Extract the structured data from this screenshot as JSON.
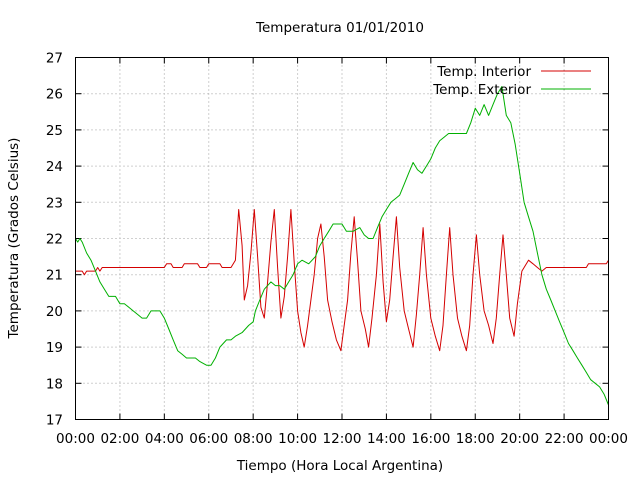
{
  "chart_data": {
    "type": "line",
    "title": "Temperatura 01/01/2010",
    "xlabel": "Tiempo (Hora Local Argentina)",
    "ylabel": "Temperatura (Grados Celsius)",
    "xlim": [
      0,
      24
    ],
    "ylim": [
      17,
      27
    ],
    "x_tick_labels": [
      "00:00",
      "02:00",
      "04:00",
      "06:00",
      "08:00",
      "10:00",
      "12:00",
      "14:00",
      "16:00",
      "18:00",
      "20:00",
      "22:00",
      "00:00"
    ],
    "y_tick_labels": [
      "17",
      "18",
      "19",
      "20",
      "21",
      "22",
      "23",
      "24",
      "25",
      "26",
      "27"
    ],
    "grid": true,
    "legend_position": "top-right",
    "series": [
      {
        "name": "Temp. Interior",
        "color": "#d40000",
        "points": [
          [
            0,
            21.1
          ],
          [
            0.3,
            21.1
          ],
          [
            0.4,
            21.0
          ],
          [
            0.5,
            21.1
          ],
          [
            0.9,
            21.1
          ],
          [
            1.0,
            21.2
          ],
          [
            1.1,
            21.1
          ],
          [
            1.2,
            21.2
          ],
          [
            2,
            21.2
          ],
          [
            3,
            21.2
          ],
          [
            4,
            21.2
          ],
          [
            4.1,
            21.3
          ],
          [
            4.3,
            21.3
          ],
          [
            4.4,
            21.2
          ],
          [
            4.8,
            21.2
          ],
          [
            4.9,
            21.3
          ],
          [
            5.5,
            21.3
          ],
          [
            5.6,
            21.2
          ],
          [
            5.9,
            21.2
          ],
          [
            6.0,
            21.3
          ],
          [
            6.5,
            21.3
          ],
          [
            6.6,
            21.2
          ],
          [
            7.0,
            21.2
          ],
          [
            7.2,
            21.4
          ],
          [
            7.35,
            22.8
          ],
          [
            7.5,
            21.8
          ],
          [
            7.6,
            20.3
          ],
          [
            7.75,
            20.7
          ],
          [
            7.9,
            21.6
          ],
          [
            8.05,
            22.8
          ],
          [
            8.2,
            21.5
          ],
          [
            8.35,
            20.1
          ],
          [
            8.5,
            19.8
          ],
          [
            8.65,
            20.8
          ],
          [
            8.8,
            21.9
          ],
          [
            8.95,
            22.8
          ],
          [
            9.1,
            21.2
          ],
          [
            9.25,
            19.8
          ],
          [
            9.4,
            20.4
          ],
          [
            9.55,
            21.5
          ],
          [
            9.7,
            22.8
          ],
          [
            9.85,
            21.3
          ],
          [
            10.0,
            20.0
          ],
          [
            10.15,
            19.4
          ],
          [
            10.3,
            19.0
          ],
          [
            10.45,
            19.6
          ],
          [
            10.6,
            20.3
          ],
          [
            10.75,
            21.0
          ],
          [
            10.9,
            22.0
          ],
          [
            11.05,
            22.4
          ],
          [
            11.2,
            21.5
          ],
          [
            11.35,
            20.3
          ],
          [
            11.55,
            19.7
          ],
          [
            11.75,
            19.2
          ],
          [
            11.95,
            18.9
          ],
          [
            12.1,
            19.6
          ],
          [
            12.25,
            20.3
          ],
          [
            12.4,
            21.6
          ],
          [
            12.55,
            22.6
          ],
          [
            12.7,
            21.4
          ],
          [
            12.85,
            20.0
          ],
          [
            13.05,
            19.5
          ],
          [
            13.2,
            19.0
          ],
          [
            13.35,
            19.8
          ],
          [
            13.55,
            21.0
          ],
          [
            13.7,
            22.4
          ],
          [
            13.85,
            20.8
          ],
          [
            14.0,
            19.7
          ],
          [
            14.15,
            20.3
          ],
          [
            14.3,
            21.5
          ],
          [
            14.45,
            22.6
          ],
          [
            14.6,
            21.2
          ],
          [
            14.8,
            20.0
          ],
          [
            15.0,
            19.5
          ],
          [
            15.2,
            19.0
          ],
          [
            15.35,
            19.9
          ],
          [
            15.5,
            21.0
          ],
          [
            15.65,
            22.3
          ],
          [
            15.8,
            21.0
          ],
          [
            16.0,
            19.8
          ],
          [
            16.2,
            19.3
          ],
          [
            16.4,
            18.9
          ],
          [
            16.55,
            19.6
          ],
          [
            16.7,
            21.0
          ],
          [
            16.85,
            22.3
          ],
          [
            17.0,
            21.0
          ],
          [
            17.2,
            19.8
          ],
          [
            17.4,
            19.3
          ],
          [
            17.6,
            18.9
          ],
          [
            17.75,
            19.6
          ],
          [
            17.9,
            21.0
          ],
          [
            18.05,
            22.1
          ],
          [
            18.2,
            21.0
          ],
          [
            18.4,
            20.0
          ],
          [
            18.6,
            19.6
          ],
          [
            18.8,
            19.1
          ],
          [
            18.95,
            19.8
          ],
          [
            19.1,
            21.0
          ],
          [
            19.25,
            22.1
          ],
          [
            19.4,
            21.0
          ],
          [
            19.55,
            19.8
          ],
          [
            19.75,
            19.3
          ],
          [
            19.9,
            20.2
          ],
          [
            20.1,
            21.1
          ],
          [
            20.4,
            21.4
          ],
          [
            20.6,
            21.3
          ],
          [
            20.8,
            21.2
          ],
          [
            21.0,
            21.1
          ],
          [
            21.2,
            21.2
          ],
          [
            22,
            21.2
          ],
          [
            23,
            21.2
          ],
          [
            23.1,
            21.3
          ],
          [
            23.9,
            21.3
          ],
          [
            24,
            21.4
          ]
        ]
      },
      {
        "name": "Temp. Exterior",
        "color": "#00b000",
        "points": [
          [
            0,
            22.0
          ],
          [
            0.1,
            21.9
          ],
          [
            0.2,
            22.0
          ],
          [
            0.3,
            21.9
          ],
          [
            0.5,
            21.6
          ],
          [
            0.7,
            21.4
          ],
          [
            0.9,
            21.1
          ],
          [
            1.1,
            20.8
          ],
          [
            1.3,
            20.6
          ],
          [
            1.5,
            20.4
          ],
          [
            1.8,
            20.4
          ],
          [
            2.0,
            20.2
          ],
          [
            2.2,
            20.2
          ],
          [
            2.4,
            20.1
          ],
          [
            2.6,
            20.0
          ],
          [
            2.8,
            19.9
          ],
          [
            3.0,
            19.8
          ],
          [
            3.2,
            19.8
          ],
          [
            3.4,
            20.0
          ],
          [
            3.8,
            20.0
          ],
          [
            4.0,
            19.8
          ],
          [
            4.2,
            19.5
          ],
          [
            4.4,
            19.2
          ],
          [
            4.6,
            18.9
          ],
          [
            4.8,
            18.8
          ],
          [
            5.0,
            18.7
          ],
          [
            5.4,
            18.7
          ],
          [
            5.6,
            18.6
          ],
          [
            5.9,
            18.5
          ],
          [
            6.1,
            18.5
          ],
          [
            6.3,
            18.7
          ],
          [
            6.5,
            19.0
          ],
          [
            6.8,
            19.2
          ],
          [
            7.0,
            19.2
          ],
          [
            7.2,
            19.3
          ],
          [
            7.5,
            19.4
          ],
          [
            7.8,
            19.6
          ],
          [
            8.0,
            19.7
          ],
          [
            8.1,
            20.0
          ],
          [
            8.3,
            20.3
          ],
          [
            8.5,
            20.6
          ],
          [
            8.8,
            20.8
          ],
          [
            9.0,
            20.7
          ],
          [
            9.2,
            20.7
          ],
          [
            9.4,
            20.6
          ],
          [
            9.6,
            20.8
          ],
          [
            9.8,
            21.0
          ],
          [
            10.0,
            21.3
          ],
          [
            10.2,
            21.4
          ],
          [
            10.5,
            21.3
          ],
          [
            10.8,
            21.5
          ],
          [
            11.0,
            21.8
          ],
          [
            11.2,
            22.0
          ],
          [
            11.4,
            22.2
          ],
          [
            11.6,
            22.4
          ],
          [
            12.0,
            22.4
          ],
          [
            12.2,
            22.2
          ],
          [
            12.5,
            22.2
          ],
          [
            12.8,
            22.3
          ],
          [
            13.0,
            22.1
          ],
          [
            13.2,
            22.0
          ],
          [
            13.4,
            22.0
          ],
          [
            13.6,
            22.3
          ],
          [
            13.8,
            22.6
          ],
          [
            14.0,
            22.8
          ],
          [
            14.2,
            23.0
          ],
          [
            14.4,
            23.1
          ],
          [
            14.6,
            23.2
          ],
          [
            14.8,
            23.5
          ],
          [
            15.0,
            23.8
          ],
          [
            15.2,
            24.1
          ],
          [
            15.4,
            23.9
          ],
          [
            15.6,
            23.8
          ],
          [
            15.8,
            24.0
          ],
          [
            16.0,
            24.2
          ],
          [
            16.2,
            24.5
          ],
          [
            16.4,
            24.7
          ],
          [
            16.6,
            24.8
          ],
          [
            16.8,
            24.9
          ],
          [
            17.2,
            24.9
          ],
          [
            17.6,
            24.9
          ],
          [
            17.8,
            25.2
          ],
          [
            18.0,
            25.6
          ],
          [
            18.2,
            25.4
          ],
          [
            18.4,
            25.7
          ],
          [
            18.6,
            25.4
          ],
          [
            18.8,
            25.7
          ],
          [
            19.0,
            26.0
          ],
          [
            19.2,
            26.2
          ],
          [
            19.4,
            25.4
          ],
          [
            19.6,
            25.2
          ],
          [
            19.8,
            24.6
          ],
          [
            20.0,
            23.8
          ],
          [
            20.2,
            23.0
          ],
          [
            20.4,
            22.6
          ],
          [
            20.6,
            22.2
          ],
          [
            20.8,
            21.6
          ],
          [
            21.0,
            21.0
          ],
          [
            21.2,
            20.6
          ],
          [
            21.4,
            20.3
          ],
          [
            21.6,
            20.0
          ],
          [
            21.8,
            19.7
          ],
          [
            22.0,
            19.4
          ],
          [
            22.2,
            19.1
          ],
          [
            22.4,
            18.9
          ],
          [
            22.6,
            18.7
          ],
          [
            22.8,
            18.5
          ],
          [
            23.0,
            18.3
          ],
          [
            23.2,
            18.1
          ],
          [
            23.4,
            18.0
          ],
          [
            23.6,
            17.9
          ],
          [
            23.8,
            17.7
          ],
          [
            24.0,
            17.4
          ]
        ]
      }
    ]
  }
}
